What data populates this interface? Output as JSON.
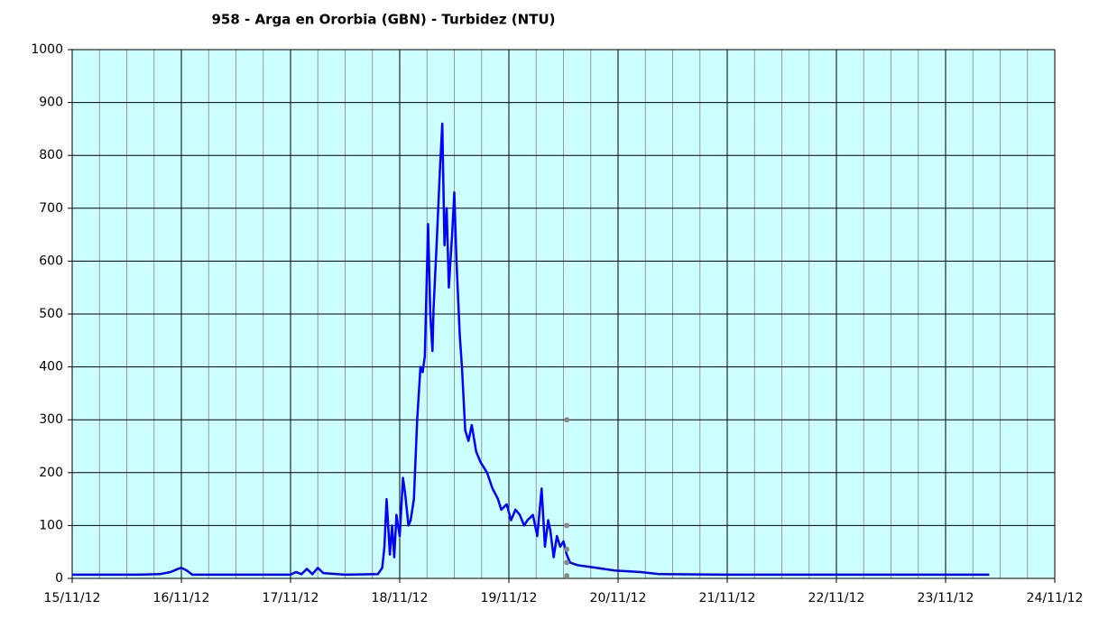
{
  "chart_data": {
    "type": "line",
    "title": "958 - Arga en Ororbia (GBN) - Turbidez (NTU)",
    "xlim": [
      0,
      9
    ],
    "xticks": [
      {
        "value": 0,
        "label": "15/11/12"
      },
      {
        "value": 1,
        "label": "16/11/12"
      },
      {
        "value": 2,
        "label": "17/11/12"
      },
      {
        "value": 3,
        "label": "18/11/12"
      },
      {
        "value": 4,
        "label": "19/11/12"
      },
      {
        "value": 5,
        "label": "20/11/12"
      },
      {
        "value": 6,
        "label": "21/11/12"
      },
      {
        "value": 7,
        "label": "22/11/12"
      },
      {
        "value": 8,
        "label": "23/11/12"
      },
      {
        "value": 9,
        "label": "24/11/12"
      }
    ],
    "x_minor_divisions": 4,
    "ylim": [
      0,
      1000
    ],
    "yticks": [
      0,
      100,
      200,
      300,
      400,
      500,
      600,
      700,
      800,
      900,
      1000
    ],
    "grid": true,
    "plot_background": "#ccffff",
    "series": [
      {
        "color": "#0000ff",
        "style": "line",
        "x": [
          0,
          0.6,
          0.8,
          0.9,
          0.97,
          1.0,
          1.05,
          1.1,
          1.5,
          2.0,
          2.05,
          2.1,
          2.15,
          2.2,
          2.25,
          2.3,
          2.5,
          2.8,
          2.84,
          2.86,
          2.88,
          2.91,
          2.93,
          2.95,
          2.97,
          3.0,
          3.03,
          3.05,
          3.08,
          3.1,
          3.13,
          3.16,
          3.19,
          3.21,
          3.23,
          3.26,
          3.28,
          3.3,
          3.31,
          3.34,
          3.37,
          3.39,
          3.41,
          3.43,
          3.45,
          3.48,
          3.5,
          3.52,
          3.55,
          3.57,
          3.6,
          3.63,
          3.66,
          3.7,
          3.74,
          3.8,
          3.85,
          3.9,
          3.93,
          3.98,
          4.02,
          4.06,
          4.1,
          4.14,
          4.17,
          4.22,
          4.26,
          4.3,
          4.33,
          4.36,
          4.38,
          4.41,
          4.44,
          4.47,
          4.5,
          4.53,
          4.56,
          4.63,
          4.8,
          4.97,
          5.21,
          5.38,
          6.0,
          8.4
        ],
        "values": [
          7,
          7,
          8,
          12,
          18,
          20,
          15,
          7,
          7,
          7,
          12,
          8,
          18,
          8,
          20,
          10,
          7,
          8,
          20,
          60,
          150,
          45,
          100,
          40,
          120,
          80,
          190,
          160,
          100,
          110,
          150,
          300,
          400,
          390,
          420,
          670,
          500,
          430,
          510,
          640,
          780,
          860,
          630,
          700,
          550,
          650,
          730,
          600,
          460,
          400,
          280,
          260,
          290,
          240,
          220,
          200,
          170,
          150,
          130,
          140,
          110,
          130,
          120,
          100,
          110,
          120,
          80,
          170,
          60,
          110,
          90,
          40,
          80,
          60,
          70,
          45,
          30,
          25,
          20,
          15,
          12,
          8,
          7,
          7
        ]
      },
      {
        "color": "#888888",
        "style": "markers",
        "x": [
          4.53,
          4.53,
          4.53,
          4.53,
          4.53
        ],
        "values": [
          300,
          100,
          55,
          30,
          5
        ]
      }
    ]
  }
}
